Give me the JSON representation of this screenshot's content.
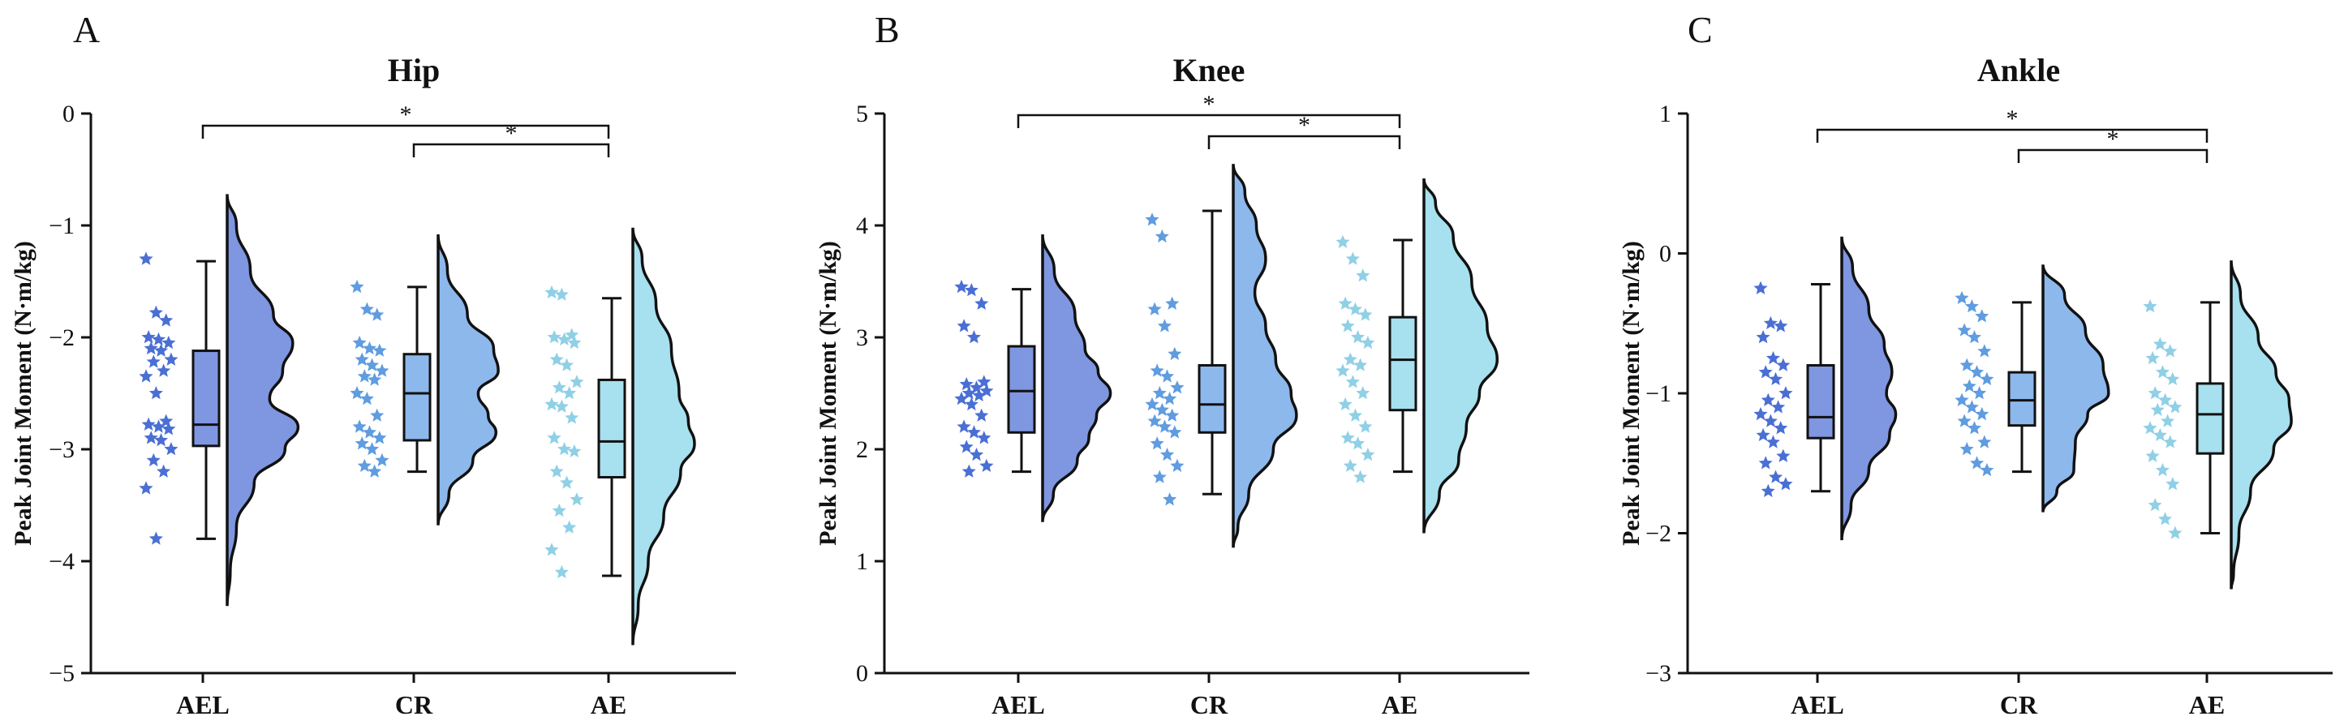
{
  "colors": {
    "AEL": "#7f96e0",
    "CR": "#8db8ec",
    "AE": "#a7e0ee",
    "AEL_star": "#4a6fd4",
    "CR_star": "#5f9ce0",
    "AE_star": "#8fd0e6"
  },
  "chart_data": [
    {
      "type": "raincloud",
      "panel_letter": "A",
      "title": "Hip",
      "ylabel": "Peak Joint Moment (N·m/kg)",
      "ylim": [
        -5,
        0
      ],
      "ticks": [
        0,
        -1,
        -2,
        -3,
        -4,
        -5
      ],
      "tick_labels": [
        "0",
        "−1",
        "−2",
        "−3",
        "−4",
        "−5"
      ],
      "categories": [
        "AEL",
        "CR",
        "AE"
      ],
      "significance": [
        {
          "from": "AEL",
          "to": "AE",
          "label": "*"
        },
        {
          "from": "CR",
          "to": "AE",
          "label": "*"
        }
      ],
      "groups": [
        {
          "name": "AEL",
          "box": {
            "min": -3.8,
            "q1": -2.97,
            "median": -2.78,
            "q3": -2.12,
            "max": -1.32
          },
          "density": [
            [
              -0.72,
              0.0
            ],
            [
              -1.0,
              0.12
            ],
            [
              -1.4,
              0.3
            ],
            [
              -1.8,
              0.6
            ],
            [
              -2.05,
              0.85
            ],
            [
              -2.3,
              0.72
            ],
            [
              -2.55,
              0.55
            ],
            [
              -2.8,
              0.92
            ],
            [
              -3.0,
              0.75
            ],
            [
              -3.3,
              0.35
            ],
            [
              -3.7,
              0.12
            ],
            [
              -4.1,
              0.04
            ],
            [
              -4.4,
              0.0
            ]
          ],
          "points": [
            -1.3,
            -1.78,
            -1.85,
            -2.0,
            -2.02,
            -2.05,
            -2.1,
            -2.12,
            -2.2,
            -2.22,
            -2.3,
            -2.35,
            -2.5,
            -2.75,
            -2.78,
            -2.8,
            -2.82,
            -2.9,
            -2.92,
            -3.0,
            -3.1,
            -3.2,
            -3.35,
            -3.8
          ]
        },
        {
          "name": "CR",
          "box": {
            "min": -3.2,
            "q1": -2.92,
            "median": -2.5,
            "q3": -2.15,
            "max": -1.55
          },
          "density": [
            [
              -1.08,
              0.0
            ],
            [
              -1.4,
              0.12
            ],
            [
              -1.8,
              0.38
            ],
            [
              -2.1,
              0.72
            ],
            [
              -2.3,
              0.78
            ],
            [
              -2.5,
              0.52
            ],
            [
              -2.7,
              0.65
            ],
            [
              -2.85,
              0.75
            ],
            [
              -3.1,
              0.45
            ],
            [
              -3.4,
              0.14
            ],
            [
              -3.68,
              0.0
            ]
          ],
          "points": [
            -1.55,
            -1.75,
            -1.8,
            -2.05,
            -2.1,
            -2.12,
            -2.2,
            -2.25,
            -2.3,
            -2.35,
            -2.38,
            -2.5,
            -2.55,
            -2.7,
            -2.8,
            -2.85,
            -2.9,
            -2.95,
            -3.0,
            -3.1,
            -3.15,
            -3.2
          ]
        },
        {
          "name": "AE",
          "box": {
            "min": -4.13,
            "q1": -3.25,
            "median": -2.93,
            "q3": -2.38,
            "max": -1.65
          },
          "density": [
            [
              -1.02,
              0.0
            ],
            [
              -1.3,
              0.12
            ],
            [
              -1.7,
              0.3
            ],
            [
              -2.1,
              0.5
            ],
            [
              -2.5,
              0.6
            ],
            [
              -2.75,
              0.72
            ],
            [
              -2.95,
              0.8
            ],
            [
              -3.2,
              0.62
            ],
            [
              -3.6,
              0.4
            ],
            [
              -4.0,
              0.2
            ],
            [
              -4.4,
              0.07
            ],
            [
              -4.75,
              0.0
            ]
          ],
          "points": [
            -1.6,
            -1.62,
            -1.98,
            -2.0,
            -2.02,
            -2.05,
            -2.2,
            -2.25,
            -2.4,
            -2.45,
            -2.5,
            -2.6,
            -2.62,
            -2.72,
            -2.9,
            -3.0,
            -3.02,
            -3.2,
            -3.3,
            -3.45,
            -3.55,
            -3.7,
            -3.9,
            -4.1
          ]
        }
      ]
    },
    {
      "type": "raincloud",
      "panel_letter": "B",
      "title": "Knee",
      "ylabel": "Peak Joint Moment (N·m/kg)",
      "ylim": [
        0,
        5
      ],
      "ticks": [
        0,
        1,
        2,
        3,
        4,
        5
      ],
      "tick_labels": [
        "0",
        "1",
        "2",
        "3",
        "4",
        "5"
      ],
      "categories": [
        "AEL",
        "CR",
        "AE"
      ],
      "significance": [
        {
          "from": "AEL",
          "to": "AE",
          "label": "*"
        },
        {
          "from": "CR",
          "to": "AE",
          "label": "*"
        }
      ],
      "groups": [
        {
          "name": "AEL",
          "box": {
            "min": 1.8,
            "q1": 2.15,
            "median": 2.52,
            "q3": 2.92,
            "max": 3.43
          },
          "density": [
            [
              3.92,
              0.0
            ],
            [
              3.6,
              0.15
            ],
            [
              3.2,
              0.42
            ],
            [
              2.9,
              0.55
            ],
            [
              2.7,
              0.72
            ],
            [
              2.5,
              0.88
            ],
            [
              2.3,
              0.7
            ],
            [
              2.1,
              0.6
            ],
            [
              1.9,
              0.45
            ],
            [
              1.6,
              0.14
            ],
            [
              1.35,
              0.0
            ]
          ],
          "points": [
            3.45,
            3.42,
            3.3,
            3.1,
            3.0,
            2.6,
            2.58,
            2.55,
            2.52,
            2.5,
            2.48,
            2.45,
            2.4,
            2.3,
            2.2,
            2.15,
            2.1,
            2.02,
            1.95,
            1.85,
            1.8
          ]
        },
        {
          "name": "CR",
          "box": {
            "min": 1.6,
            "q1": 2.15,
            "median": 2.4,
            "q3": 2.75,
            "max": 4.13
          },
          "density": [
            [
              4.55,
              0.0
            ],
            [
              4.3,
              0.15
            ],
            [
              4.0,
              0.3
            ],
            [
              3.7,
              0.42
            ],
            [
              3.4,
              0.28
            ],
            [
              3.1,
              0.42
            ],
            [
              2.8,
              0.55
            ],
            [
              2.5,
              0.75
            ],
            [
              2.3,
              0.82
            ],
            [
              2.0,
              0.52
            ],
            [
              1.6,
              0.2
            ],
            [
              1.3,
              0.06
            ],
            [
              1.12,
              0.0
            ]
          ],
          "points": [
            4.05,
            3.9,
            3.3,
            3.25,
            3.1,
            2.85,
            2.7,
            2.65,
            2.55,
            2.5,
            2.45,
            2.4,
            2.35,
            2.3,
            2.25,
            2.2,
            2.15,
            2.05,
            1.95,
            1.85,
            1.75,
            1.55
          ]
        },
        {
          "name": "AE",
          "box": {
            "min": 1.8,
            "q1": 2.35,
            "median": 2.8,
            "q3": 3.18,
            "max": 3.87
          },
          "density": [
            [
              4.42,
              0.0
            ],
            [
              4.2,
              0.15
            ],
            [
              3.9,
              0.38
            ],
            [
              3.5,
              0.62
            ],
            [
              3.1,
              0.82
            ],
            [
              2.8,
              0.95
            ],
            [
              2.5,
              0.72
            ],
            [
              2.2,
              0.55
            ],
            [
              1.9,
              0.45
            ],
            [
              1.6,
              0.2
            ],
            [
              1.25,
              0.0
            ]
          ],
          "points": [
            3.85,
            3.7,
            3.55,
            3.3,
            3.25,
            3.2,
            3.1,
            3.0,
            2.95,
            2.8,
            2.75,
            2.7,
            2.6,
            2.5,
            2.4,
            2.3,
            2.2,
            2.1,
            2.05,
            1.95,
            1.85,
            1.75
          ]
        }
      ]
    },
    {
      "type": "raincloud",
      "panel_letter": "C",
      "title": "Ankle",
      "ylabel": "Peak Joint Moment (N·m/kg)",
      "ylim": [
        -3,
        1
      ],
      "ticks": [
        1,
        0,
        -1,
        -2,
        -3
      ],
      "tick_labels": [
        "1",
        "0",
        "−1",
        "−2",
        "−3"
      ],
      "categories": [
        "AEL",
        "CR",
        "AE"
      ],
      "significance": [
        {
          "from": "AEL",
          "to": "AE",
          "label": "*"
        },
        {
          "from": "CR",
          "to": "AE",
          "label": "*"
        }
      ],
      "groups": [
        {
          "name": "AEL",
          "box": {
            "min": -1.7,
            "q1": -1.32,
            "median": -1.17,
            "q3": -0.8,
            "max": -0.22
          },
          "density": [
            [
              0.12,
              0.0
            ],
            [
              -0.1,
              0.14
            ],
            [
              -0.4,
              0.35
            ],
            [
              -0.65,
              0.55
            ],
            [
              -0.85,
              0.65
            ],
            [
              -1.0,
              0.58
            ],
            [
              -1.15,
              0.7
            ],
            [
              -1.3,
              0.62
            ],
            [
              -1.55,
              0.35
            ],
            [
              -1.8,
              0.12
            ],
            [
              -2.05,
              0.0
            ]
          ],
          "points": [
            -0.25,
            -0.5,
            -0.52,
            -0.6,
            -0.75,
            -0.8,
            -0.85,
            -0.9,
            -1.0,
            -1.05,
            -1.1,
            -1.15,
            -1.2,
            -1.25,
            -1.3,
            -1.35,
            -1.45,
            -1.5,
            -1.6,
            -1.65,
            -1.7
          ]
        },
        {
          "name": "CR",
          "box": {
            "min": -1.56,
            "q1": -1.23,
            "median": -1.05,
            "q3": -0.85,
            "max": -0.35
          },
          "density": [
            [
              -0.08,
              0.0
            ],
            [
              -0.3,
              0.28
            ],
            [
              -0.55,
              0.55
            ],
            [
              -0.8,
              0.78
            ],
            [
              -1.0,
              0.85
            ],
            [
              -1.15,
              0.58
            ],
            [
              -1.35,
              0.42
            ],
            [
              -1.55,
              0.4
            ],
            [
              -1.7,
              0.18
            ],
            [
              -1.85,
              0.0
            ]
          ],
          "points": [
            -0.32,
            -0.38,
            -0.45,
            -0.55,
            -0.6,
            -0.7,
            -0.8,
            -0.85,
            -0.9,
            -0.95,
            -1.0,
            -1.05,
            -1.1,
            -1.15,
            -1.2,
            -1.25,
            -1.35,
            -1.4,
            -1.5,
            -1.55
          ]
        },
        {
          "name": "AE",
          "box": {
            "min": -2.0,
            "q1": -1.43,
            "median": -1.15,
            "q3": -0.93,
            "max": -0.35
          },
          "density": [
            [
              -0.05,
              0.0
            ],
            [
              -0.3,
              0.12
            ],
            [
              -0.6,
              0.35
            ],
            [
              -0.85,
              0.58
            ],
            [
              -1.05,
              0.75
            ],
            [
              -1.2,
              0.78
            ],
            [
              -1.4,
              0.55
            ],
            [
              -1.7,
              0.25
            ],
            [
              -2.0,
              0.1
            ],
            [
              -2.3,
              0.03
            ],
            [
              -2.4,
              0.0
            ]
          ],
          "points": [
            -0.38,
            -0.65,
            -0.7,
            -0.75,
            -0.85,
            -0.9,
            -1.0,
            -1.05,
            -1.1,
            -1.12,
            -1.2,
            -1.25,
            -1.3,
            -1.35,
            -1.45,
            -1.55,
            -1.65,
            -1.8,
            -1.9,
            -2.0
          ]
        }
      ]
    }
  ]
}
